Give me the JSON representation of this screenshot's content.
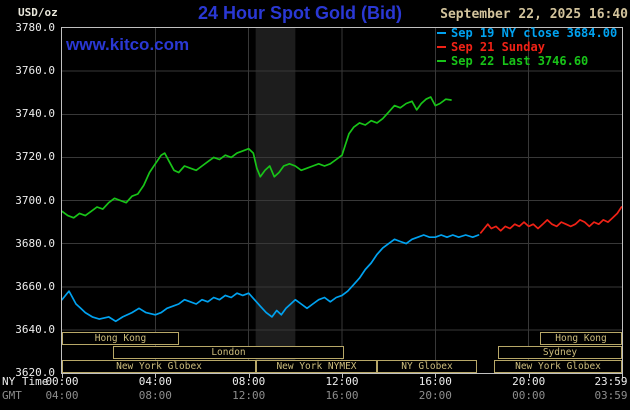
{
  "header": {
    "units": "USD/oz",
    "title": "24 Hour Spot Gold (Bid)",
    "datetime": "September 22, 2025 16:40",
    "watermark": "www.kitco.com"
  },
  "colors": {
    "background": "#000000",
    "title_blue": "#2a38d4",
    "datetime_tan": "#d2c39c",
    "grid": "#383838",
    "frame": "#c0c0c0",
    "session_tan": "#cdbd7d",
    "axis_text": "#eeeeee",
    "gmt_text": "#8d8d8d"
  },
  "legend": {
    "items": [
      {
        "label": "Sep 19 NY close 3684.00",
        "color": "#00a2f0"
      },
      {
        "label": "Sep 21 Sunday",
        "color": "#f02216"
      },
      {
        "label": "Sep 22 Last 3746.60",
        "color": "#18c418"
      }
    ]
  },
  "axes": {
    "ny_time_caption": "NY Time",
    "gmt_caption": "GMT",
    "y_ticks": [
      "3780.0",
      "3760.0",
      "3740.0",
      "3720.0",
      "3700.0",
      "3680.0",
      "3660.0",
      "3640.0",
      "3620.0"
    ],
    "x_ticks_ny": [
      "00:00",
      "04:00",
      "08:00",
      "12:00",
      "16:00",
      "20:00",
      "23:59"
    ],
    "x_ticks_gmt": [
      "04:00",
      "08:00",
      "12:00",
      "16:00",
      "20:00",
      "00:00",
      "03:59"
    ],
    "x_tick_hours": [
      0,
      4,
      8,
      12,
      16,
      20,
      24
    ]
  },
  "sessions": {
    "rows": [
      {
        "boxes": [
          {
            "label": "Hong Kong",
            "start": 0,
            "end": 5.0
          },
          {
            "label": "Hong Kong",
            "start": 20.5,
            "end": 24
          }
        ]
      },
      {
        "boxes": [
          {
            "label": "London",
            "start": 2.2,
            "end": 12.1
          },
          {
            "label": "Sydney",
            "start": 18.7,
            "end": 24
          }
        ]
      },
      {
        "boxes": [
          {
            "label": "New York Globex",
            "start": 0,
            "end": 8.3
          },
          {
            "label": "New York NYMEX",
            "start": 8.3,
            "end": 13.5
          },
          {
            "label": "NY Globex",
            "start": 13.5,
            "end": 17.8
          },
          {
            "label": "New York Globex",
            "start": 18.5,
            "end": 24
          }
        ]
      }
    ]
  },
  "chart_data": {
    "type": "line",
    "title": "24 Hour Spot Gold (Bid)",
    "xlabel": "NY Time (hours)",
    "ylabel": "USD/oz",
    "xlim": [
      0,
      24
    ],
    "ylim": [
      3620,
      3780
    ],
    "legend_position": "top-right",
    "grid": {
      "x_hours": [
        4,
        8,
        12,
        16,
        20
      ],
      "y_values": [
        3640,
        3660,
        3680,
        3700,
        3720,
        3740,
        3760
      ]
    },
    "bands": [
      {
        "from": 8.3,
        "to": 10.0,
        "color": "#1d1d1d"
      }
    ],
    "series": [
      {
        "id": "sep19-ny-close",
        "name": "Sep 19 NY close 3684.00",
        "color": "#00a2f0",
        "points": [
          [
            0,
            3654
          ],
          [
            0.15,
            3656
          ],
          [
            0.3,
            3658
          ],
          [
            0.45,
            3655
          ],
          [
            0.6,
            3652
          ],
          [
            0.8,
            3650
          ],
          [
            1,
            3648
          ],
          [
            1.3,
            3646
          ],
          [
            1.6,
            3645
          ],
          [
            2,
            3646
          ],
          [
            2.3,
            3644
          ],
          [
            2.6,
            3646
          ],
          [
            3,
            3648
          ],
          [
            3.3,
            3650
          ],
          [
            3.6,
            3648
          ],
          [
            4,
            3647
          ],
          [
            4.25,
            3648
          ],
          [
            4.5,
            3650
          ],
          [
            4.75,
            3651
          ],
          [
            5,
            3652
          ],
          [
            5.25,
            3654
          ],
          [
            5.5,
            3653
          ],
          [
            5.75,
            3652
          ],
          [
            6,
            3654
          ],
          [
            6.25,
            3653
          ],
          [
            6.5,
            3655
          ],
          [
            6.75,
            3654
          ],
          [
            7,
            3656
          ],
          [
            7.25,
            3655
          ],
          [
            7.5,
            3657
          ],
          [
            7.75,
            3656
          ],
          [
            8,
            3657
          ],
          [
            8.25,
            3654
          ],
          [
            8.5,
            3651
          ],
          [
            8.75,
            3648
          ],
          [
            9,
            3646
          ],
          [
            9.2,
            3649
          ],
          [
            9.4,
            3647
          ],
          [
            9.6,
            3650
          ],
          [
            9.8,
            3652
          ],
          [
            10,
            3654
          ],
          [
            10.25,
            3652
          ],
          [
            10.5,
            3650
          ],
          [
            10.75,
            3652
          ],
          [
            11,
            3654
          ],
          [
            11.25,
            3655
          ],
          [
            11.5,
            3653
          ],
          [
            11.75,
            3655
          ],
          [
            12,
            3656
          ],
          [
            12.25,
            3658
          ],
          [
            12.5,
            3661
          ],
          [
            12.75,
            3664
          ],
          [
            13,
            3668
          ],
          [
            13.25,
            3671
          ],
          [
            13.5,
            3675
          ],
          [
            13.75,
            3678
          ],
          [
            14,
            3680
          ],
          [
            14.25,
            3682
          ],
          [
            14.5,
            3681
          ],
          [
            14.75,
            3680
          ],
          [
            15,
            3682
          ],
          [
            15.25,
            3683
          ],
          [
            15.5,
            3684
          ],
          [
            15.75,
            3683
          ],
          [
            16,
            3683
          ],
          [
            16.25,
            3684
          ],
          [
            16.5,
            3683
          ],
          [
            16.75,
            3684
          ],
          [
            17,
            3683
          ],
          [
            17.3,
            3684
          ],
          [
            17.6,
            3683
          ],
          [
            17.85,
            3684
          ]
        ]
      },
      {
        "id": "sep21-sunday",
        "name": "Sep 21 Sunday",
        "color": "#f02216",
        "points": [
          [
            17.95,
            3685
          ],
          [
            18.1,
            3687
          ],
          [
            18.25,
            3689
          ],
          [
            18.4,
            3687
          ],
          [
            18.6,
            3688
          ],
          [
            18.8,
            3686
          ],
          [
            19,
            3688
          ],
          [
            19.2,
            3687
          ],
          [
            19.4,
            3689
          ],
          [
            19.6,
            3688
          ],
          [
            19.8,
            3690
          ],
          [
            20,
            3688
          ],
          [
            20.2,
            3689
          ],
          [
            20.4,
            3687
          ],
          [
            20.6,
            3689
          ],
          [
            20.8,
            3691
          ],
          [
            21,
            3689
          ],
          [
            21.2,
            3688
          ],
          [
            21.4,
            3690
          ],
          [
            21.6,
            3689
          ],
          [
            21.8,
            3688
          ],
          [
            22,
            3689
          ],
          [
            22.2,
            3691
          ],
          [
            22.4,
            3690
          ],
          [
            22.6,
            3688
          ],
          [
            22.8,
            3690
          ],
          [
            23,
            3689
          ],
          [
            23.2,
            3691
          ],
          [
            23.4,
            3690
          ],
          [
            23.6,
            3692
          ],
          [
            23.8,
            3694
          ],
          [
            23.98,
            3697
          ]
        ]
      },
      {
        "id": "sep22-last",
        "name": "Sep 22 Last 3746.60",
        "color": "#18c418",
        "points": [
          [
            0,
            3695
          ],
          [
            0.25,
            3693
          ],
          [
            0.5,
            3692
          ],
          [
            0.75,
            3694
          ],
          [
            1,
            3693
          ],
          [
            1.25,
            3695
          ],
          [
            1.5,
            3697
          ],
          [
            1.75,
            3696
          ],
          [
            2,
            3699
          ],
          [
            2.25,
            3701
          ],
          [
            2.5,
            3700
          ],
          [
            2.75,
            3699
          ],
          [
            3,
            3702
          ],
          [
            3.25,
            3703
          ],
          [
            3.5,
            3707
          ],
          [
            3.75,
            3713
          ],
          [
            4,
            3717
          ],
          [
            4.25,
            3721
          ],
          [
            4.4,
            3722
          ],
          [
            4.6,
            3718
          ],
          [
            4.8,
            3714
          ],
          [
            5,
            3713
          ],
          [
            5.25,
            3716
          ],
          [
            5.5,
            3715
          ],
          [
            5.75,
            3714
          ],
          [
            6,
            3716
          ],
          [
            6.25,
            3718
          ],
          [
            6.5,
            3720
          ],
          [
            6.75,
            3719
          ],
          [
            7,
            3721
          ],
          [
            7.25,
            3720
          ],
          [
            7.5,
            3722
          ],
          [
            7.75,
            3723
          ],
          [
            8,
            3724
          ],
          [
            8.2,
            3722
          ],
          [
            8.35,
            3715
          ],
          [
            8.5,
            3711
          ],
          [
            8.7,
            3714
          ],
          [
            8.9,
            3716
          ],
          [
            9.1,
            3711
          ],
          [
            9.3,
            3713
          ],
          [
            9.5,
            3716
          ],
          [
            9.75,
            3717
          ],
          [
            10,
            3716
          ],
          [
            10.25,
            3714
          ],
          [
            10.5,
            3715
          ],
          [
            10.75,
            3716
          ],
          [
            11,
            3717
          ],
          [
            11.25,
            3716
          ],
          [
            11.5,
            3717
          ],
          [
            11.75,
            3719
          ],
          [
            12,
            3721
          ],
          [
            12.15,
            3726
          ],
          [
            12.3,
            3731
          ],
          [
            12.5,
            3734
          ],
          [
            12.75,
            3736
          ],
          [
            13,
            3735
          ],
          [
            13.25,
            3737
          ],
          [
            13.5,
            3736
          ],
          [
            13.75,
            3738
          ],
          [
            14,
            3741
          ],
          [
            14.25,
            3744
          ],
          [
            14.5,
            3743
          ],
          [
            14.75,
            3745
          ],
          [
            15,
            3746
          ],
          [
            15.2,
            3742
          ],
          [
            15.4,
            3745
          ],
          [
            15.6,
            3747
          ],
          [
            15.8,
            3748
          ],
          [
            16,
            3744
          ],
          [
            16.2,
            3745
          ],
          [
            16.45,
            3747
          ],
          [
            16.67,
            3746.6
          ]
        ]
      }
    ]
  }
}
